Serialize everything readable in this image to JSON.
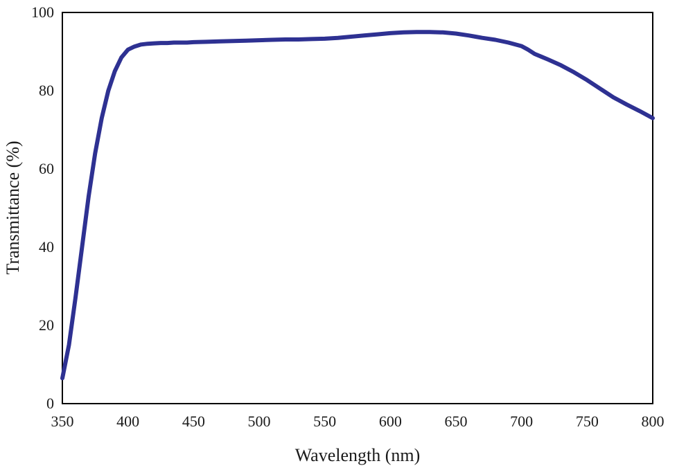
{
  "chart_data": {
    "type": "line",
    "title": "",
    "xlabel": "Wavelength (nm)",
    "ylabel": "Transmittance (%)",
    "xlim": [
      350,
      800
    ],
    "ylim": [
      0,
      100
    ],
    "x_ticks": [
      350,
      400,
      450,
      500,
      550,
      600,
      650,
      700,
      750,
      800
    ],
    "y_ticks": [
      0,
      20,
      40,
      60,
      80,
      100
    ],
    "grid": false,
    "legend": "none",
    "series": [
      {
        "color": "#2e3192",
        "x": [
          350,
          355,
          360,
          365,
          370,
          375,
          380,
          385,
          390,
          395,
          400,
          405,
          410,
          415,
          420,
          425,
          430,
          435,
          440,
          445,
          450,
          460,
          470,
          480,
          490,
          500,
          510,
          520,
          530,
          540,
          550,
          560,
          570,
          580,
          590,
          600,
          610,
          620,
          630,
          640,
          650,
          660,
          665,
          670,
          680,
          690,
          700,
          705,
          710,
          715,
          720,
          730,
          740,
          750,
          760,
          770,
          780,
          790,
          800
        ],
        "y": [
          6.5,
          15,
          27,
          40,
          53,
          64,
          73,
          80,
          85,
          88.5,
          90.5,
          91.3,
          91.8,
          92.0,
          92.1,
          92.2,
          92.2,
          92.3,
          92.3,
          92.3,
          92.4,
          92.5,
          92.6,
          92.7,
          92.8,
          92.9,
          93.0,
          93.1,
          93.1,
          93.2,
          93.3,
          93.5,
          93.8,
          94.1,
          94.4,
          94.7,
          94.9,
          95.0,
          95.0,
          94.9,
          94.6,
          94.1,
          93.8,
          93.5,
          93.0,
          92.3,
          91.4,
          90.5,
          89.4,
          88.7,
          88.0,
          86.5,
          84.7,
          82.7,
          80.5,
          78.3,
          76.5,
          74.8,
          73.0
        ]
      }
    ]
  }
}
